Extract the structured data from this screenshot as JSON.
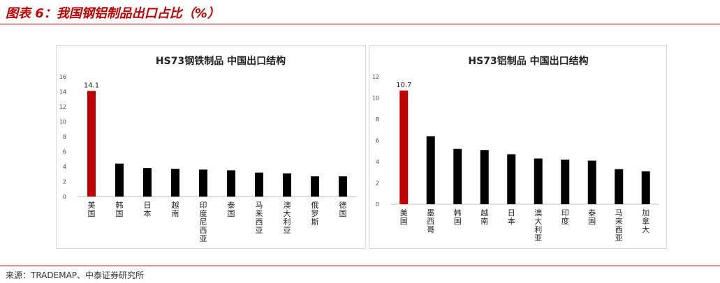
{
  "header": {
    "title": "图表 6：我国钢铝制品出口占比（%）"
  },
  "footer": {
    "source": "来源：TRADEMAP、中泰证券研究所"
  },
  "colors": {
    "accent": "#c00000",
    "bar_default": "#000000",
    "bar_highlight": "#c00000"
  },
  "chart_data": [
    {
      "type": "bar",
      "title": "HS73钢铁制品 中国出口结构",
      "categories": [
        "美国",
        "韩国",
        "日本",
        "越南",
        "印度尼西亚",
        "泰国",
        "马来西亚",
        "澳大利亚",
        "俄罗斯",
        "德国"
      ],
      "values": [
        14.1,
        4.4,
        3.8,
        3.7,
        3.6,
        3.5,
        3.2,
        3.1,
        2.7,
        2.7
      ],
      "data_labels": [
        "14.1",
        "",
        "",
        "",
        "",
        "",
        "",
        "",
        "",
        ""
      ],
      "ylim": [
        0,
        16
      ],
      "yticks": [
        "0",
        "2",
        "4",
        "6",
        "8",
        "10",
        "12",
        "14",
        "16"
      ],
      "grid": false,
      "highlight_index": 0
    },
    {
      "type": "bar",
      "title": "HS73铝制品 中国出口结构",
      "categories": [
        "美国",
        "墨西哥",
        "韩国",
        "越南",
        "日本",
        "澳大利亚",
        "印度",
        "泰国",
        "马来西亚",
        "加拿大"
      ],
      "values": [
        10.7,
        6.4,
        5.2,
        5.1,
        4.7,
        4.3,
        4.2,
        4.1,
        3.3,
        3.1
      ],
      "data_labels": [
        "10.7",
        "",
        "",
        "",
        "",
        "",
        "",
        "",
        "",
        ""
      ],
      "ylim": [
        0,
        12
      ],
      "yticks": [
        "0",
        "2",
        "4",
        "6",
        "8",
        "10",
        "12"
      ],
      "grid": false,
      "highlight_index": 0
    }
  ]
}
